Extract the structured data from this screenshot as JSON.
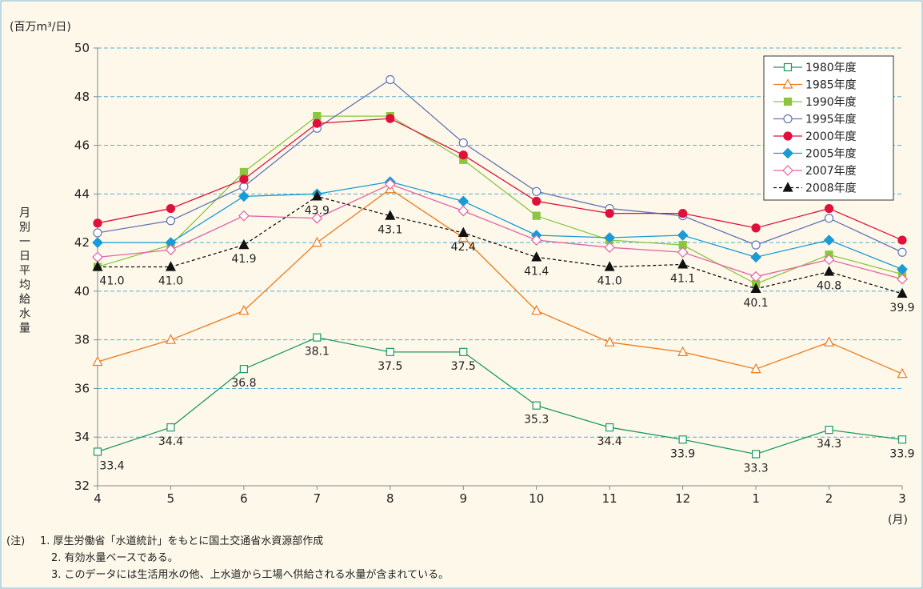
{
  "chart_data": {
    "type": "line",
    "ylabel_unit": "(百万m³/日)",
    "ylabel": "月別一日平均給水量",
    "xlabel_unit": "(月)",
    "notes_prefix": "(注)",
    "notes": [
      "1. 厚生労働省「水道統計」をもとに国土交通省水資源部作成",
      "2. 有効水量ベースである。",
      "3. このデータには生活用水の他、上水道から工場へ供給される水量が含まれている。"
    ],
    "categories": [
      "4",
      "5",
      "6",
      "7",
      "8",
      "9",
      "10",
      "11",
      "12",
      "1",
      "2",
      "3"
    ],
    "ylim": [
      32,
      50
    ],
    "yticks": [
      32,
      34,
      36,
      38,
      40,
      42,
      44,
      46,
      48,
      50
    ],
    "grid": true,
    "series": [
      {
        "name": "1980年度",
        "color": "#1e9a5c",
        "marker": "square",
        "filled": false,
        "dashed": false,
        "values": [
          33.4,
          34.4,
          36.8,
          38.1,
          37.5,
          37.5,
          35.3,
          34.4,
          33.9,
          33.3,
          34.3,
          33.9
        ],
        "value_labels": [
          "33.4",
          "34.4",
          "36.8",
          "38.1",
          "37.5",
          "37.5",
          "35.3",
          "34.4",
          "33.9",
          "33.3",
          "34.3",
          "33.9"
        ]
      },
      {
        "name": "1985年度",
        "color": "#f07a1a",
        "marker": "triangle",
        "filled": false,
        "dashed": false,
        "values": [
          37.1,
          38.0,
          39.2,
          42.0,
          44.2,
          42.2,
          39.2,
          37.9,
          37.5,
          36.8,
          37.9,
          36.6
        ]
      },
      {
        "name": "1990年度",
        "color": "#8cc63f",
        "marker": "square",
        "filled": true,
        "dashed": false,
        "values": [
          41.0,
          41.9,
          44.9,
          47.2,
          47.2,
          45.4,
          43.1,
          42.1,
          41.9,
          40.3,
          41.5,
          40.7
        ]
      },
      {
        "name": "1995年度",
        "color": "#6474b4",
        "marker": "circle",
        "filled": false,
        "dashed": false,
        "values": [
          42.4,
          42.9,
          44.3,
          46.7,
          48.7,
          46.1,
          44.1,
          43.4,
          43.1,
          41.9,
          43.0,
          41.6
        ]
      },
      {
        "name": "2000年度",
        "color": "#e0103c",
        "marker": "circle",
        "filled": true,
        "dashed": false,
        "values": [
          42.8,
          43.4,
          44.6,
          46.9,
          47.1,
          45.6,
          43.7,
          43.2,
          43.2,
          42.6,
          43.4,
          42.1
        ]
      },
      {
        "name": "2005年度",
        "color": "#1a9ad6",
        "marker": "diamond",
        "filled": true,
        "dashed": false,
        "values": [
          42.0,
          42.0,
          43.9,
          44.0,
          44.5,
          43.7,
          42.3,
          42.2,
          42.3,
          41.4,
          42.1,
          40.9
        ]
      },
      {
        "name": "2007年度",
        "color": "#e464a4",
        "marker": "diamond",
        "filled": false,
        "dashed": false,
        "values": [
          41.4,
          41.7,
          43.1,
          43.0,
          44.4,
          43.3,
          42.1,
          41.8,
          41.6,
          40.6,
          41.3,
          40.5
        ]
      },
      {
        "name": "2008年度",
        "color": "#111111",
        "marker": "triangle",
        "filled": true,
        "dashed": true,
        "values": [
          41.0,
          41.0,
          41.9,
          43.9,
          43.1,
          42.4,
          41.4,
          41.0,
          41.1,
          40.1,
          40.8,
          39.9
        ],
        "value_labels": [
          "41.0",
          "41.0",
          "41.9",
          "43.9",
          "43.1",
          "42.4",
          "41.4",
          "41.0",
          "41.1",
          "40.1",
          "40.8",
          "39.9"
        ]
      }
    ]
  }
}
